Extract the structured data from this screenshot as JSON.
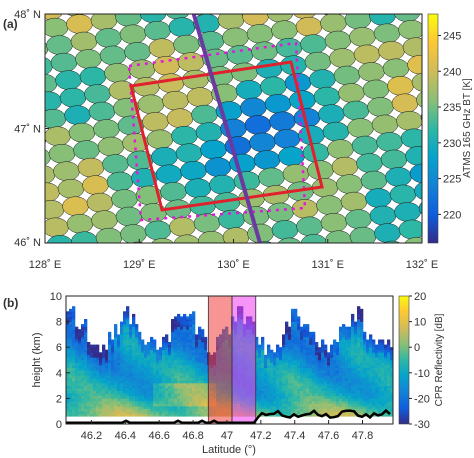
{
  "chart_data": [
    {
      "type": "heatmap",
      "panel_label": "(a)",
      "xlabel": "",
      "ylabel": "",
      "x_ticks": [
        {
          "value": 128,
          "label": "128˚ E"
        },
        {
          "value": 129,
          "label": "129˚ E"
        },
        {
          "value": 130,
          "label": "130˚ E"
        },
        {
          "value": 131,
          "label": "131˚ E"
        },
        {
          "value": 132,
          "label": "132˚ E"
        }
      ],
      "y_ticks": [
        {
          "value": 46,
          "label": "46˚ N"
        },
        {
          "value": 47,
          "label": "47˚ N"
        },
        {
          "value": 48,
          "label": "48˚ N"
        }
      ],
      "xlim": [
        128,
        132
      ],
      "ylim": [
        46,
        48
      ],
      "colorbar": {
        "label": "ATMS 165 GHz BT [K]",
        "range": [
          216,
          248
        ],
        "ticks": [
          220,
          225,
          230,
          235,
          240,
          245
        ]
      },
      "overlays": [
        "red quadrilateral box",
        "magenta dotted quadrilateral box",
        "purple satellite track line"
      ]
    },
    {
      "type": "heatmap",
      "panel_label": "(b)",
      "xlabel": "Latitude (°)",
      "ylabel": "height (km)",
      "x_ticks": [
        "46.2",
        "46.4",
        "46.6",
        "46.8",
        "47",
        "47.2",
        "47.4",
        "47.6",
        "47.8"
      ],
      "y_ticks": [
        "0",
        "2",
        "4",
        "6",
        "8",
        "10"
      ],
      "xlim": [
        46.05,
        47.98
      ],
      "ylim": [
        0,
        10
      ],
      "colorbar": {
        "label": "CPR Reflectivity [dB]",
        "range": [
          -30,
          20
        ],
        "ticks": [
          -30,
          -20,
          -10,
          0,
          10,
          20
        ]
      },
      "highlight_bands": [
        {
          "x": [
            46.89,
            47.03
          ],
          "color": "red"
        },
        {
          "x": [
            47.03,
            47.17
          ],
          "color": "magenta"
        }
      ],
      "surface_line": {
        "color": "black"
      }
    }
  ]
}
